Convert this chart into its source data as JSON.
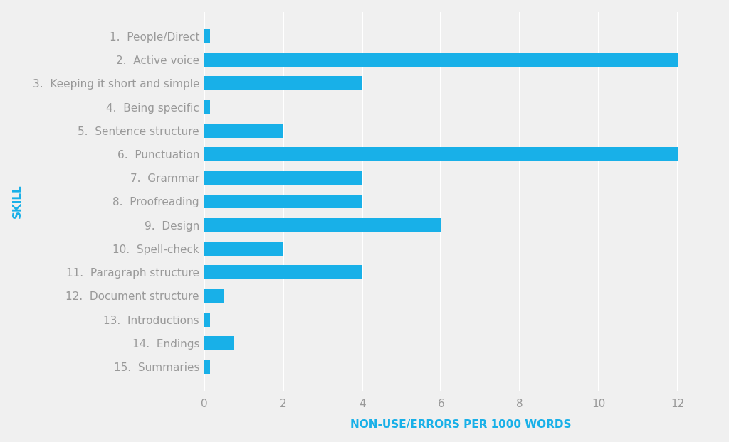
{
  "categories": [
    "1.  People/Direct",
    "2.  Active voice",
    "3.  Keeping it short and simple",
    "4.  Being specific",
    "5.  Sentence structure",
    "6.  Punctuation",
    "7.  Grammar",
    "8.  Proofreading",
    "9.  Design",
    "10.  Spell-check",
    "11.  Paragraph structure",
    "12.  Document structure",
    "13.  Introductions",
    "14.  Endings",
    "15.  Summaries"
  ],
  "values": [
    0.15,
    12.0,
    4.0,
    0.15,
    2.0,
    12.0,
    4.0,
    4.0,
    6.0,
    2.0,
    4.0,
    0.5,
    0.15,
    0.75,
    0.15
  ],
  "bar_color": "#18b0e8",
  "background_color": "#f0f0f0",
  "xlabel": "NON-USE/ERRORS PER 1000 WORDS",
  "ylabel": "SKILL",
  "xlabel_color": "#18b0e8",
  "ylabel_color": "#18b0e8",
  "tick_label_color": "#999999",
  "grid_color": "#ffffff",
  "xlim": [
    0,
    13
  ],
  "xticks": [
    0,
    2,
    4,
    6,
    8,
    10,
    12
  ],
  "xlabel_fontsize": 11,
  "ylabel_fontsize": 11,
  "tick_fontsize": 11,
  "category_fontsize": 11
}
